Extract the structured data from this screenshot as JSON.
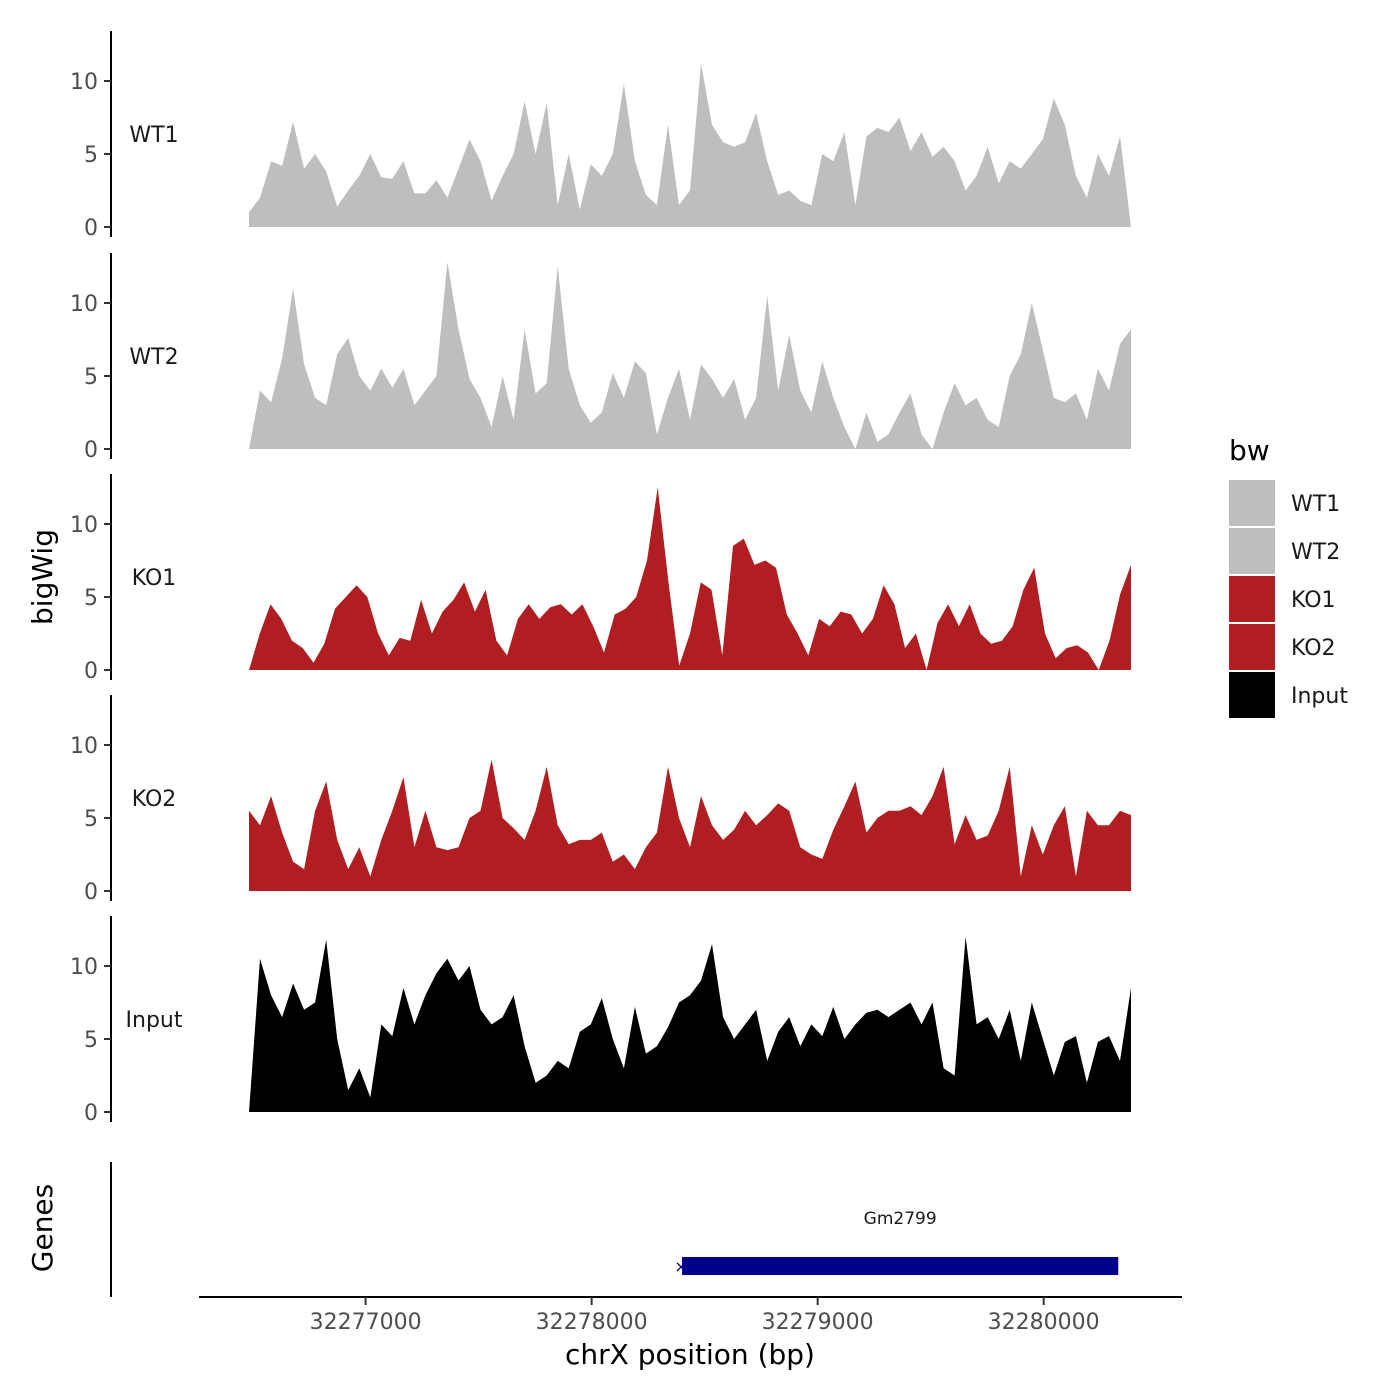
{
  "chart_data": {
    "type": "area",
    "y_axis_title": "bigWig",
    "x_axis_title": "chrX position (bp)",
    "genes_axis_title": "Genes",
    "x_range": [
      32276400,
      32280320
    ],
    "x_ticks": [
      32277000,
      32278000,
      32279000,
      32280000
    ],
    "x_tick_labels": [
      "32277000",
      "32278000",
      "32279000",
      "32280000"
    ],
    "y_range": [
      0,
      13.5
    ],
    "y_ticks": [
      0,
      5,
      10
    ],
    "y_tick_labels": [
      "0",
      "5",
      "10"
    ],
    "series": [
      {
        "name": "WT1",
        "label": "WT1",
        "color": "#bebebe",
        "values": [
          1,
          2,
          4.5,
          4.2,
          7.2,
          4,
          5,
          3.8,
          1.4,
          2.5,
          3.5,
          5,
          3.4,
          3.3,
          4.5,
          2.3,
          2.3,
          3.2,
          2,
          4,
          6,
          4.5,
          1.8,
          3.5,
          5,
          8.6,
          5,
          8.5,
          1.5,
          5,
          1.2,
          4.3,
          3.5,
          5,
          9.8,
          4.5,
          2.2,
          1.5,
          7,
          1.5,
          2.5,
          11.2,
          7,
          5.8,
          5.5,
          5.8,
          7.8,
          4.5,
          2.2,
          2.5,
          1.8,
          1.5,
          5,
          4.5,
          6.5,
          1.5,
          6.2,
          6.8,
          6.5,
          7.5,
          5.2,
          6.5,
          4.8,
          5.5,
          4.5,
          2.5,
          3.5,
          5.5,
          3,
          4.5,
          4,
          5,
          6,
          8.8,
          7,
          3.5,
          2,
          5,
          3.5,
          6.2,
          0
        ]
      },
      {
        "name": "WT2",
        "label": "WT2",
        "color": "#bebebe",
        "values": [
          0,
          4,
          3.2,
          6.2,
          11,
          5.8,
          3.5,
          3,
          6.5,
          7.6,
          5,
          4,
          5.5,
          4.2,
          5.5,
          3,
          4,
          5,
          12.8,
          8.2,
          4.8,
          3.5,
          1.5,
          5,
          2,
          8.2,
          3.8,
          4.5,
          12.5,
          5.5,
          3,
          1.8,
          2.5,
          5.2,
          3.5,
          6,
          5.2,
          1,
          3.5,
          5.5,
          2,
          5.8,
          4.8,
          3.5,
          4.8,
          2,
          3.5,
          10.5,
          4,
          7.8,
          4,
          2.5,
          6,
          3.5,
          1.5,
          0,
          2.5,
          0.5,
          1,
          2.5,
          3.8,
          1,
          0,
          2.5,
          4.5,
          3,
          3.5,
          2,
          1.5,
          5,
          6.5,
          10,
          6.8,
          3.5,
          3.2,
          3.8,
          2,
          5.5,
          4,
          7.2,
          8.2
        ]
      },
      {
        "name": "KO1",
        "label": "KO1",
        "color": "#b11e22",
        "values": [
          0,
          2.5,
          4.5,
          3.5,
          2,
          1.5,
          0.5,
          1.8,
          4.2,
          5,
          5.8,
          5,
          2.5,
          1,
          2.2,
          2,
          4.8,
          2.5,
          4,
          4.8,
          6,
          4,
          5.5,
          2,
          1,
          3.5,
          4.5,
          3.5,
          4.3,
          4.5,
          3.8,
          4.5,
          3,
          1.2,
          3.8,
          4.2,
          5,
          7.5,
          12.5,
          6,
          0.3,
          2.5,
          6,
          5.5,
          1,
          8.5,
          9,
          7.2,
          7.5,
          7,
          3.8,
          2.5,
          1,
          3.5,
          3,
          4,
          3.8,
          2.5,
          3.5,
          5.8,
          4.5,
          1.5,
          2.5,
          0,
          3.2,
          4.5,
          3,
          4.5,
          2.5,
          1.8,
          2,
          3,
          5.5,
          7,
          2.5,
          0.8,
          1.5,
          1.7,
          1.2,
          0,
          2,
          5.2,
          7.2
        ]
      },
      {
        "name": "KO2",
        "label": "KO2",
        "color": "#b11e22",
        "values": [
          5.5,
          4.5,
          6.5,
          4,
          2,
          1.5,
          5.5,
          7.5,
          3.5,
          1.5,
          3,
          1,
          3.5,
          5.5,
          7.8,
          3,
          5.5,
          3,
          2.8,
          3,
          5,
          5.5,
          9,
          5,
          4.3,
          3.5,
          5.5,
          8.5,
          4.5,
          3.2,
          3.5,
          3.5,
          4,
          2,
          2.5,
          1.5,
          3,
          4,
          8.5,
          5,
          3,
          6.5,
          4.5,
          3.5,
          4.2,
          5.5,
          4.5,
          5.2,
          6,
          5.5,
          3,
          2.5,
          2.2,
          4.2,
          5.8,
          7.5,
          4,
          5,
          5.5,
          5.5,
          5.8,
          5.2,
          6.5,
          8.5,
          3.2,
          5.2,
          3.5,
          3.8,
          5.5,
          8.5,
          1,
          4.5,
          2.5,
          4.5,
          5.8,
          1,
          5.5,
          4.5,
          4.5,
          5.5,
          5.2
        ]
      },
      {
        "name": "Input",
        "label": "Input",
        "color": "#000000",
        "values": [
          0,
          10.5,
          8,
          6.5,
          8.8,
          7,
          7.5,
          11.8,
          5,
          1.5,
          3,
          1,
          6,
          5.2,
          8.5,
          6,
          8,
          9.5,
          10.5,
          9,
          10,
          7,
          6,
          6.5,
          8,
          4.5,
          2,
          2.5,
          3.5,
          3,
          5.5,
          6,
          7.8,
          5,
          3,
          7.2,
          4,
          4.5,
          5.8,
          7.5,
          8,
          9,
          11.5,
          6.5,
          5,
          6,
          7,
          3.5,
          5.5,
          6.5,
          4.5,
          6,
          5.2,
          7.2,
          5,
          6,
          6.8,
          7,
          6.5,
          7,
          7.5,
          6,
          7.5,
          3,
          2.5,
          12,
          6,
          6.5,
          5,
          7,
          3.5,
          7.5,
          5,
          2.5,
          4.8,
          5.2,
          2,
          4.8,
          5.2,
          3.5,
          8.5
        ]
      }
    ],
    "legend": {
      "title": "bw",
      "position": "right",
      "entries": [
        {
          "label": "WT1",
          "color": "#bebebe"
        },
        {
          "label": "WT2",
          "color": "#bebebe"
        },
        {
          "label": "KO1",
          "color": "#b11e22"
        },
        {
          "label": "KO2",
          "color": "#b11e22"
        },
        {
          "label": "Input",
          "color": "#000000"
        }
      ]
    },
    "gene": {
      "name": "Gm2799",
      "start": 32278400,
      "end": 32280330,
      "color": "#00008b"
    }
  }
}
